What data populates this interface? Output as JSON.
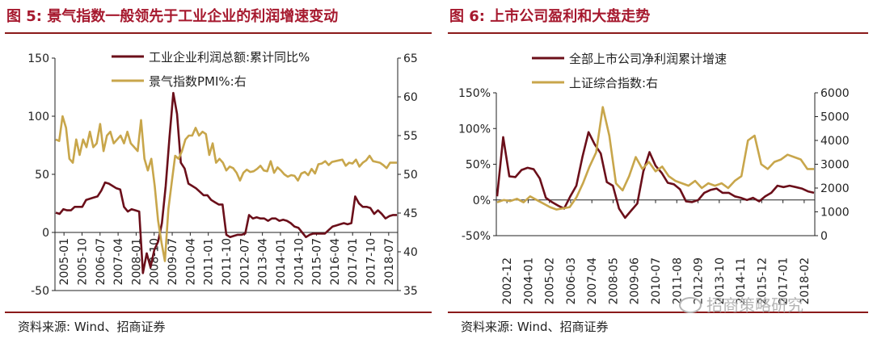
{
  "watermark": {
    "text": "招商策略研究",
    "icon": "wechat-icon"
  },
  "chart_data": [
    {
      "type": "line",
      "title": "图 5: 景气指数一般领先于工业企业的利润增速变动",
      "source": "资料来源: Wind、招商证券",
      "xlabel": "",
      "ylabel": "",
      "x_tick_labels": [
        "2005-01",
        "2005-10",
        "2006-07",
        "2007-04",
        "2008-01",
        "2008-10",
        "2009-07",
        "2010-04",
        "2011-01",
        "2011-10",
        "2012-07",
        "2013-04",
        "2014-01",
        "2014-10",
        "2015-07",
        "2016-04",
        "2017-01",
        "2017-10",
        "2018-07"
      ],
      "ylim_left": [
        -50,
        150
      ],
      "yticks_left": [
        -50,
        0,
        50,
        100,
        150
      ],
      "ylim_right": [
        35,
        65
      ],
      "yticks_right": [
        35,
        40,
        45,
        50,
        55,
        60,
        65
      ],
      "legend": "top-center",
      "grid": false,
      "series": [
        {
          "name": "工业企业利润总额:累计同比%",
          "axis": "left",
          "color": "#6b0f1a",
          "values": [
            17,
            16,
            20,
            19,
            19,
            22,
            22,
            22,
            28,
            29,
            30,
            31,
            36,
            43,
            42,
            40,
            38,
            37,
            22,
            18,
            20,
            19,
            18,
            -35,
            -18,
            -30,
            -15,
            -8,
            8,
            40,
            82,
            120,
            102,
            60,
            55,
            42,
            40,
            38,
            35,
            32,
            32,
            28,
            26,
            24,
            24,
            -2,
            -4,
            -3,
            -2,
            -2,
            -1,
            15,
            12,
            13,
            12,
            12,
            10,
            12,
            12,
            10,
            11,
            10,
            8,
            5,
            4,
            0,
            -4,
            -2,
            -1,
            -1,
            -1,
            -1,
            2,
            5,
            6,
            7,
            8,
            7,
            8,
            31,
            25,
            22,
            22,
            21,
            16,
            19,
            16,
            12,
            14,
            15,
            15
          ]
        },
        {
          "name": "景气指数PMI%:右",
          "axis": "right",
          "color": "#c8a64b",
          "values": [
            54.5,
            54.3,
            57.5,
            56.0,
            52.0,
            51.5,
            54.5,
            52.5,
            54.5,
            53.5,
            55.5,
            53.5,
            54.0,
            56.5,
            53.0,
            55.0,
            55.5,
            54.0,
            54.5,
            55.0,
            54.0,
            55.5,
            54.0,
            53.5,
            53.0,
            57.0,
            52.0,
            50.5,
            52.0,
            48.5,
            44.0,
            41.2,
            38.8,
            45.5,
            49.0,
            52.4,
            52.0,
            53.0,
            54.5,
            55.0,
            55.0,
            56.0,
            55.0,
            55.5,
            55.2,
            52.5,
            54.0,
            51.5,
            52.0,
            51.5,
            50.5,
            51.0,
            50.8,
            50.2,
            49.2,
            50.2,
            50.6,
            50.3,
            50.4,
            50.7,
            51.1,
            50.5,
            50.4,
            51.7,
            50.2,
            50.9,
            50.5,
            50.0,
            49.7,
            49.9,
            49.8,
            49.2,
            50.1,
            50.3,
            49.9,
            50.7,
            50.1,
            51.3,
            51.4,
            51.7,
            51.2,
            51.6,
            51.7,
            51.8,
            51.9,
            51.1,
            51.5,
            51.4,
            51.9,
            51.0,
            51.5,
            51.8,
            52.4,
            51.7,
            51.6,
            51.5,
            51.2,
            50.8,
            51.5,
            51.5,
            51.5
          ]
        }
      ]
    },
    {
      "type": "line",
      "title": "图 6: 上市公司盈利和大盘走势",
      "source": "资料来源: Wind、招商证券",
      "xlabel": "",
      "ylabel": "",
      "x_tick_labels": [
        "2002-12",
        "2004-01",
        "2005-02",
        "2006-03",
        "2007-04",
        "2008-05",
        "2009-06",
        "2010-07",
        "2011-08",
        "2012-09",
        "2013-10",
        "2014-11",
        "2015-12",
        "2017-01",
        "2018-02"
      ],
      "ylim_left": [
        -50,
        150
      ],
      "yticks_left": [
        "-50%",
        "0%",
        "50%",
        "100%",
        "150%"
      ],
      "ylim_right": [
        0,
        6000
      ],
      "yticks_right": [
        0,
        1000,
        2000,
        3000,
        4000,
        5000,
        6000
      ],
      "legend": "top-center",
      "grid": false,
      "series": [
        {
          "name": "全部上市公司净利润累计增速",
          "axis": "left",
          "color": "#6b0f1a",
          "values": [
            5,
            88,
            33,
            32,
            42,
            45,
            43,
            30,
            3,
            -3,
            -8,
            -12,
            5,
            20,
            60,
            95,
            78,
            65,
            25,
            20,
            -12,
            -25,
            -15,
            -5,
            40,
            67,
            48,
            38,
            24,
            22,
            15,
            -2,
            -3,
            0,
            10,
            14,
            16,
            10,
            10,
            5,
            3,
            0,
            3,
            -2,
            5,
            10,
            20,
            18,
            20,
            18,
            16,
            12,
            10
          ]
        },
        {
          "name": "上证综合指数:右",
          "axis": "right",
          "color": "#c8a64b",
          "values": [
            1400,
            1500,
            1450,
            1550,
            1400,
            1650,
            1500,
            1350,
            1200,
            1100,
            1150,
            1200,
            1600,
            2200,
            2900,
            3500,
            5400,
            4200,
            2200,
            1900,
            2500,
            3300,
            2800,
            3100,
            2700,
            2900,
            2500,
            2300,
            2200,
            2100,
            2300,
            2000,
            2200,
            2100,
            2200,
            2000,
            2300,
            2500,
            4000,
            4200,
            3000,
            2800,
            3100,
            3200,
            3400,
            3300,
            3200,
            2800,
            2800
          ]
        }
      ]
    }
  ]
}
